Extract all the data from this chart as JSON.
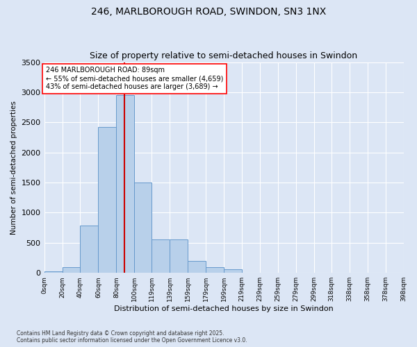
{
  "title_line1": "246, MARLBOROUGH ROAD, SWINDON, SN3 1NX",
  "title_line2": "Size of property relative to semi-detached houses in Swindon",
  "xlabel": "Distribution of semi-detached houses by size in Swindon",
  "ylabel": "Number of semi-detached properties",
  "property_size": 89,
  "annotation_title": "246 MARLBOROUGH ROAD: 89sqm",
  "annotation_smaller": "← 55% of semi-detached houses are smaller (4,659)",
  "annotation_larger": "43% of semi-detached houses are larger (3,689) →",
  "footer_line1": "Contains HM Land Registry data © Crown copyright and database right 2025.",
  "footer_line2": "Contains public sector information licensed under the Open Government Licence v3.0.",
  "bin_edges": [
    0,
    20,
    40,
    60,
    80,
    100,
    119,
    139,
    159,
    179,
    199,
    219,
    239,
    259,
    279,
    299,
    318,
    338,
    358,
    378,
    398
  ],
  "bin_labels": [
    "0sqm",
    "20sqm",
    "40sqm",
    "60sqm",
    "80sqm",
    "100sqm",
    "119sqm",
    "139sqm",
    "159sqm",
    "179sqm",
    "199sqm",
    "219sqm",
    "239sqm",
    "259sqm",
    "279sqm",
    "299sqm",
    "318sqm",
    "338sqm",
    "358sqm",
    "378sqm",
    "398sqm"
  ],
  "bar_heights": [
    20,
    100,
    790,
    2420,
    2950,
    1500,
    555,
    555,
    200,
    100,
    55,
    0,
    0,
    0,
    0,
    0,
    0,
    0,
    0,
    0
  ],
  "bar_color": "#b8d0ea",
  "bar_edge_color": "#6699cc",
  "vline_color": "#cc0000",
  "vline_x": 89,
  "ylim": [
    0,
    3500
  ],
  "yticks": [
    0,
    500,
    1000,
    1500,
    2000,
    2500,
    3000,
    3500
  ],
  "background_color": "#dce6f5",
  "axes_bg_color": "#dce6f5",
  "grid_color": "#ffffff",
  "title_fontsize": 10,
  "subtitle_fontsize": 9
}
